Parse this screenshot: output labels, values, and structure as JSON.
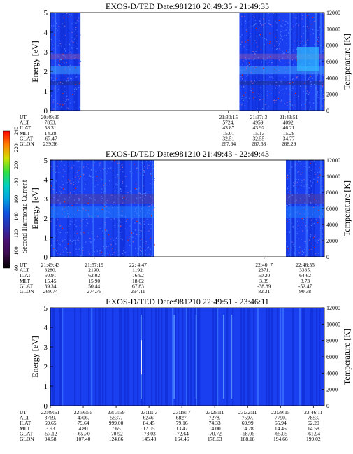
{
  "colorbar": {
    "label": "Second Harmonic Current",
    "ticks": [
      "80",
      "100",
      "120",
      "140",
      "160",
      "180",
      "200",
      "220",
      "240"
    ],
    "stops": [
      "#000000",
      "#3a0a4a",
      "#4b1070",
      "#2a2fb0",
      "#1050e0",
      "#00a0e0",
      "#00d0c0",
      "#30e040",
      "#d0e000",
      "#ff8000",
      "#ff0000"
    ]
  },
  "chart_data": [
    {
      "type": "heatmap",
      "title": "EXOS-D/TED   Date:981210   20:49:35 - 21:49:35",
      "ylabel": "Energy [eV]",
      "ylabel_right": "Temperature [K]",
      "ylim": [
        0,
        5
      ],
      "ylim_right": [
        0,
        12000
      ],
      "yticks": [
        "0",
        "1",
        "2",
        "3",
        "4",
        "5"
      ],
      "yticks_right": [
        "0",
        "2000",
        "4000",
        "6000",
        "8000",
        "10000",
        "12000"
      ],
      "data_segments": [
        [
          0.0,
          0.11
        ],
        [
          0.69,
          1.0
        ]
      ],
      "table": {
        "row_labels": [
          "UT",
          "ALT",
          "ILAT",
          "MLT",
          "GLAT",
          "GLON"
        ],
        "columns": [
          {
            "x": 0.0,
            "values": [
              "20:49:35",
              "7853.",
              "58.31",
              "14.28",
              "-67.47",
              "239.36"
            ]
          },
          {
            "x": 0.65,
            "values": [
              "21:30:15",
              "5724.",
              "43.87",
              "15.01",
              "32.51",
              "267.64"
            ]
          },
          {
            "x": 0.76,
            "values": [
              "21:37: 3",
              "4959.",
              "43.92",
              "15.13",
              "32.55",
              "267.68"
            ]
          },
          {
            "x": 0.87,
            "values": [
              "21:43:51",
              "4092.",
              "46.21",
              "15.28",
              "34.77",
              "268.29"
            ]
          }
        ]
      }
    },
    {
      "type": "heatmap",
      "title": "EXOS-D/TED   Date:981210   21:49:43 - 22:49:43",
      "ylabel": "Energy [eV]",
      "ylabel_right": "Temperature [K]",
      "ylim": [
        0,
        5
      ],
      "ylim_right": [
        0,
        12000
      ],
      "yticks": [
        "0",
        "1",
        "2",
        "3",
        "4",
        "5"
      ],
      "yticks_right": [
        "0",
        "2000",
        "4000",
        "6000",
        "8000",
        "10000",
        "12000"
      ],
      "data_segments": [
        [
          0.0,
          0.38
        ],
        [
          0.86,
          1.0
        ]
      ],
      "table": {
        "row_labels": [
          "UT",
          "ALT",
          "ILAT",
          "MLT",
          "GLAT",
          "GLON"
        ],
        "columns": [
          {
            "x": 0.0,
            "values": [
              "21:49:43",
              "3280.",
              "50.91",
              "15.45",
              "39.34",
              "269.74"
            ]
          },
          {
            "x": 0.16,
            "values": [
              "21:57:19",
              "2190.",
              "62.02",
              "15.90",
              "50.44",
              "274.75"
            ]
          },
          {
            "x": 0.32,
            "values": [
              "22: 4:47",
              "1192.",
              "76.92",
              "18.02",
              "67.83",
              "294.11"
            ]
          },
          {
            "x": 0.78,
            "values": [
              "22:40: 7",
              "2371.",
              "50.20",
              "3.39",
              "-38.89",
              "82.31"
            ]
          },
          {
            "x": 0.93,
            "values": [
              "22:46:55",
              "3335.",
              "64.62",
              "3.73",
              "-52.47",
              "90.38"
            ]
          }
        ]
      }
    },
    {
      "type": "heatmap",
      "title": "EXOS-D/TED   Date:981210   22:49:51 - 23:46:11",
      "ylabel": "Energy [eV]",
      "ylabel_right": "Temperature [K]",
      "ylim": [
        0,
        5
      ],
      "ylim_right": [
        0,
        12000
      ],
      "yticks": [
        "0",
        "1",
        "2",
        "3",
        "4",
        "5"
      ],
      "yticks_right": [
        "0",
        "2000",
        "4000",
        "6000",
        "8000",
        "10000",
        "12000"
      ],
      "data_segments": [
        [
          0.0,
          1.0
        ]
      ],
      "table": {
        "row_labels": [
          "UT",
          "ALT",
          "ILAT",
          "MLT",
          "GLAT",
          "GLON"
        ],
        "columns": [
          {
            "x": 0.0,
            "values": [
              "22:49:51",
              "3769.",
              "69.65",
              "3.93",
              "-57.12",
              "94.58"
            ]
          },
          {
            "x": 0.12,
            "values": [
              "22:56:55",
              "4706.",
              "79.64",
              "4.80",
              "-65.70",
              "107.40"
            ]
          },
          {
            "x": 0.24,
            "values": [
              "23: 3:59",
              "5537.",
              "999.00",
              "7.65",
              "-70.92",
              "124.86"
            ]
          },
          {
            "x": 0.36,
            "values": [
              "23:11: 3",
              "6246.",
              "84.45",
              "12.05",
              "-73.03",
              "145.48"
            ]
          },
          {
            "x": 0.48,
            "values": [
              "23:18: 7",
              "6827.",
              "79.16",
              "13.47",
              "-72.64",
              "164.46"
            ]
          },
          {
            "x": 0.6,
            "values": [
              "23:25:11",
              "7278.",
              "74.33",
              "14.00",
              "-70.72",
              "178.63"
            ]
          },
          {
            "x": 0.72,
            "values": [
              "23:32:11",
              "7597.",
              "69.99",
              "14.28",
              "-68.06",
              "188.18"
            ]
          },
          {
            "x": 0.84,
            "values": [
              "23:39:15",
              "7790.",
              "65.94",
              "14.45",
              "-65.05",
              "194.66"
            ]
          },
          {
            "x": 0.96,
            "values": [
              "23:46:11",
              "7853.",
              "62.20",
              "14.58",
              "-61.94",
              "199.02"
            ]
          }
        ]
      }
    }
  ]
}
